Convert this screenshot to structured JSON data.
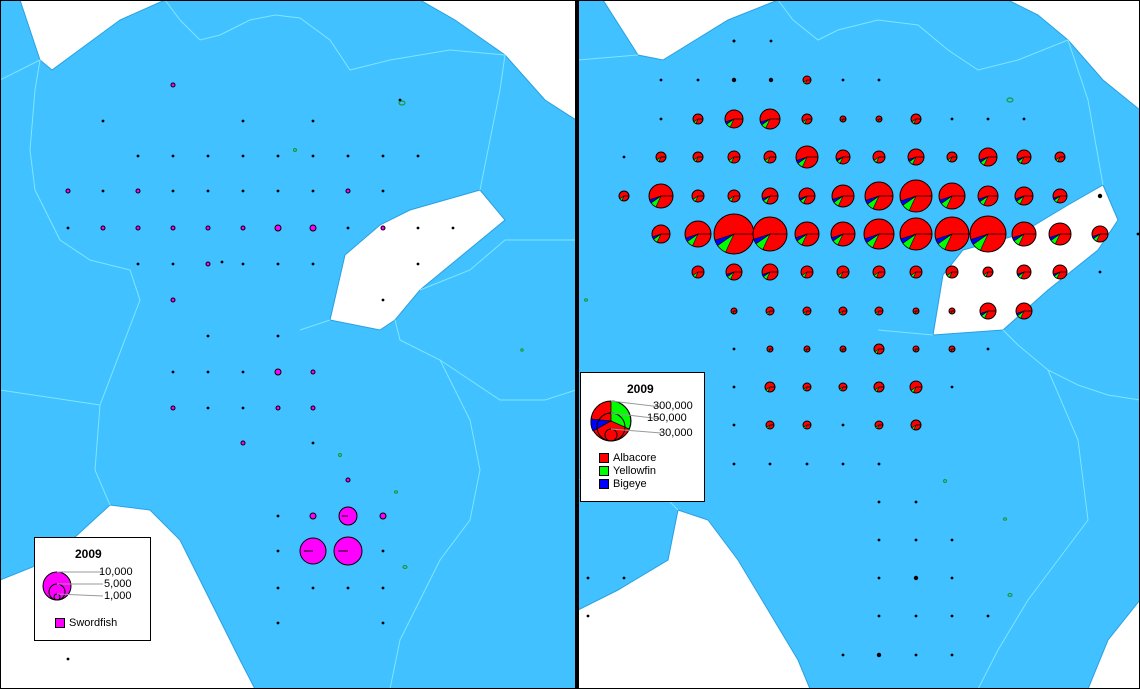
{
  "colors": {
    "ocean": "#41c1ff",
    "land": "#ffffff",
    "coast": "#2aa0e0",
    "border": "#7fe6ff",
    "island": "#1a9a3a",
    "swordfish": "#ff00ff",
    "albacore": "#ff0000",
    "yellowfin": "#00ff00",
    "bigeye": "#0000ff"
  },
  "left_panel": {
    "legend": {
      "title": "2009",
      "scale_values": [
        "10,000",
        "5,000",
        "1,000"
      ],
      "species": [
        {
          "name": "Swordfish",
          "color": "#ff00ff"
        }
      ]
    }
  },
  "right_panel": {
    "legend": {
      "title": "2009",
      "scale_values": [
        "300,000",
        "150,000",
        "30,000"
      ],
      "species": [
        {
          "name": "Albacore",
          "color": "#ff0000"
        },
        {
          "name": "Yellowfin",
          "color": "#00ff00"
        },
        {
          "name": "Bigeye",
          "color": "#0000ff"
        }
      ]
    }
  }
}
